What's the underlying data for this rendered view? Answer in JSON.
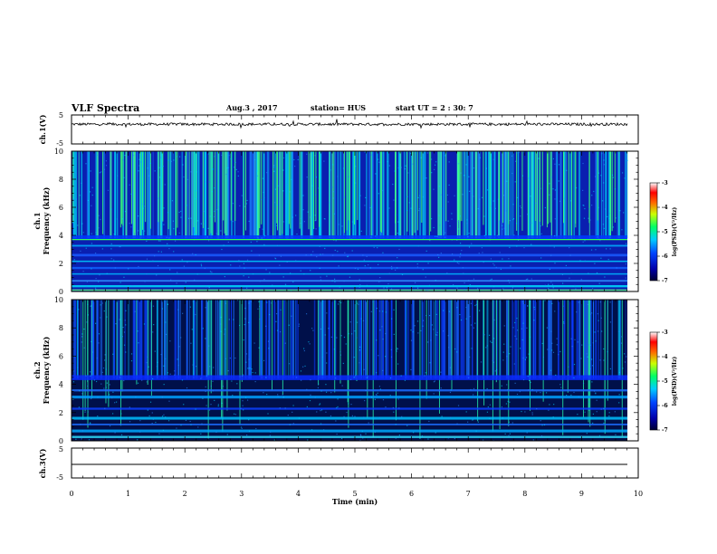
{
  "header": {
    "title": "VLF Spectra",
    "date": "Aug.3 , 2017",
    "station": "station= HUS",
    "start": "start UT = 2 : 30: 7"
  },
  "chart_data": [
    {
      "type": "line",
      "name": "ch.1 waveform",
      "ylabel": "ch.1(V)",
      "ylim": [
        -5,
        5
      ],
      "yticks": [
        "5",
        "-5"
      ],
      "xlim": [
        0,
        10
      ]
    },
    {
      "type": "heatmap",
      "ylabel_line1": "ch.1",
      "ylabel_line2": "Frequency (kHz)",
      "ylim": [
        0,
        10
      ],
      "yticks": [
        "0",
        "2",
        "4",
        "6",
        "8",
        "10"
      ],
      "xlim": [
        0,
        10
      ],
      "colorbar": {
        "label": "log(PSD)(V²/Hz)",
        "range": [
          -7,
          -3
        ],
        "ticks": [
          "-3",
          "-4",
          "-5",
          "-6",
          "-7"
        ]
      }
    },
    {
      "type": "heatmap",
      "ylabel_line1": "ch.2",
      "ylabel_line2": "Frequency (kHz)",
      "ylim": [
        0,
        10
      ],
      "yticks": [
        "0",
        "2",
        "4",
        "6",
        "8",
        "10"
      ],
      "xlim": [
        0,
        10
      ],
      "colorbar": {
        "label": "log(PSD)(V²/Hz)",
        "range": [
          -7,
          -3
        ],
        "ticks": [
          "-3",
          "-4",
          "-5",
          "-6",
          "-7"
        ]
      }
    },
    {
      "type": "line",
      "name": "ch.3 waveform",
      "ylabel": "ch.3(V)",
      "ylim": [
        -5,
        5
      ],
      "yticks": [
        "5",
        "-5"
      ],
      "xlim": [
        0,
        10
      ],
      "xlabel": "Time (min)",
      "xticks": [
        "0",
        "1",
        "2",
        "3",
        "4",
        "5",
        "6",
        "7",
        "8",
        "9",
        "10"
      ]
    }
  ]
}
